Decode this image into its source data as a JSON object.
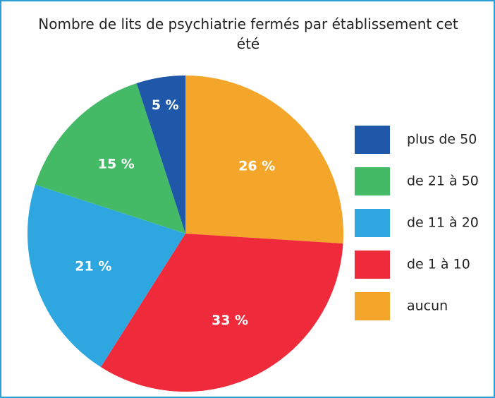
{
  "chart_data": {
    "type": "pie",
    "title": "Nombre de lits de psychiatrie fermés par établissement cet été",
    "categories": [
      "aucun",
      "de 1 à 10",
      "de 11 à 20",
      "de 21 à 50",
      "plus de 50"
    ],
    "values": [
      26,
      33,
      21,
      15,
      5
    ],
    "value_labels": [
      "26 %",
      "33 %",
      "21 %",
      "15 %",
      "5 %"
    ],
    "colors": [
      "#f4a62a",
      "#ee2a3b",
      "#2ea7e0",
      "#44b966",
      "#1f58a8"
    ],
    "legend": "right"
  }
}
